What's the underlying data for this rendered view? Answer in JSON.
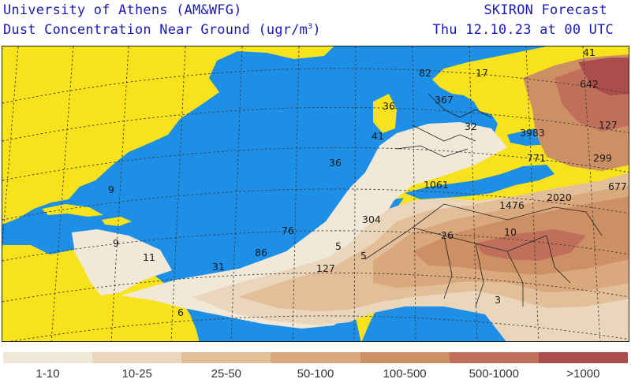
{
  "header": {
    "institution": "University of Athens (AM&WFG)",
    "product_prefix": "Dust Concentration Near Ground (ugr/m",
    "product_exp": "3",
    "product_suffix": ")",
    "forecast": "SKIRON Forecast",
    "valid_time": "Thu 12.10.23 at 00 UTC"
  },
  "colors": {
    "ocean": "#1e8fe6",
    "land": "#f7e21c",
    "grid": "#3a3a3a",
    "c1": "#f1e8d8",
    "c2": "#ead6bb",
    "c3": "#e3bf99",
    "c4": "#d9a87c",
    "c5": "#cd8f64",
    "c6": "#c0705a",
    "c7": "#ab4d4d"
  },
  "map_values": [
    "41",
    "642",
    "127",
    "3983",
    "771",
    "299",
    "677",
    "1061",
    "1476",
    "2020",
    "304",
    "26",
    "10",
    "36",
    "76",
    "86",
    "5",
    "127",
    "5",
    "31",
    "9",
    "9",
    "11",
    "6",
    "36",
    "41",
    "82",
    "17",
    "367",
    "32",
    "3"
  ],
  "legend": {
    "ranges": [
      "1-10",
      "10-25",
      "25-50",
      "50-100",
      "100-500",
      "500-1000",
      ">1000"
    ],
    "colors": [
      "#f1e8d8",
      "#ead6bb",
      "#e3bf99",
      "#d9a87c",
      "#cd8f64",
      "#c0705a",
      "#ab4d4d"
    ]
  }
}
